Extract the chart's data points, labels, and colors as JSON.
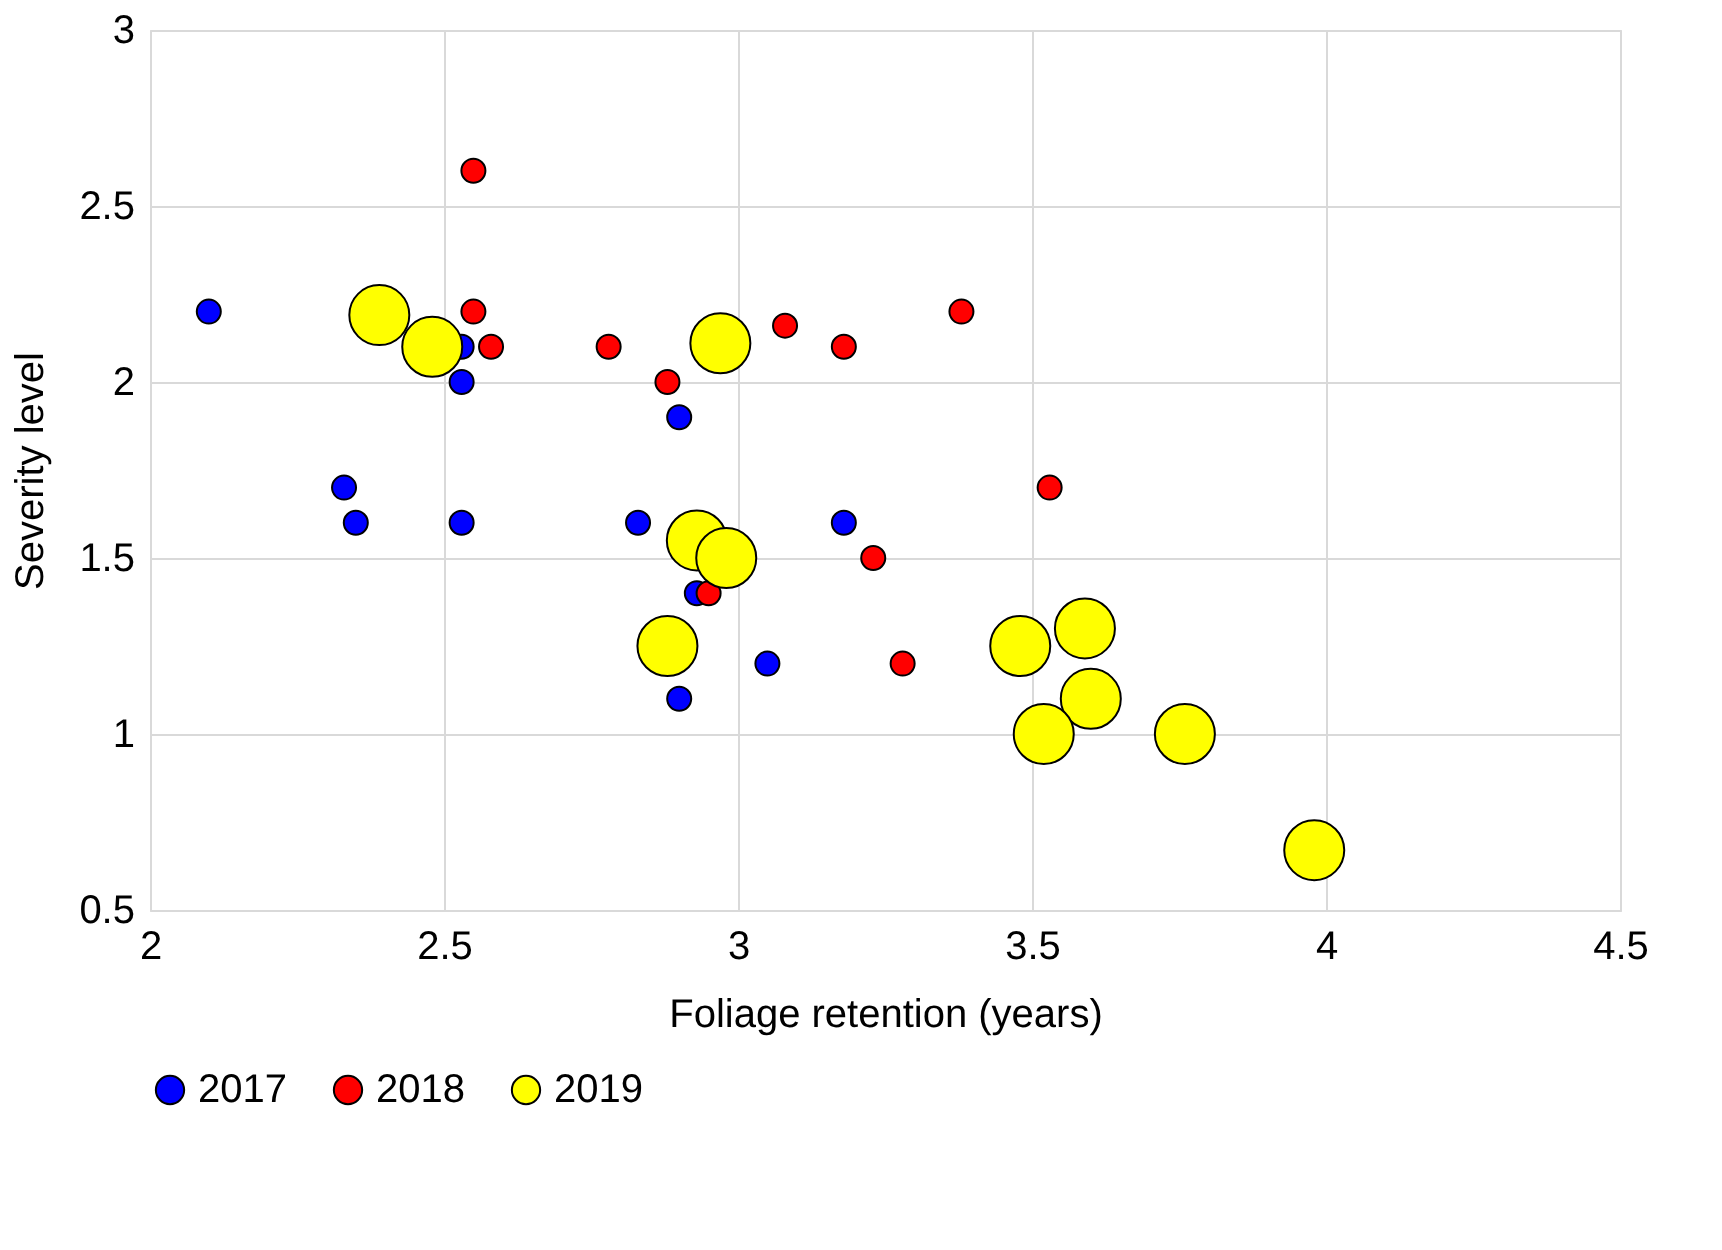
{
  "chart_data": {
    "type": "bubble",
    "xlabel": "Foliage retention (years)",
    "ylabel": "Severity level",
    "xlim": [
      2,
      4.5
    ],
    "xticks": [
      2,
      2.5,
      3,
      3.5,
      4,
      4.5
    ],
    "ylim": [
      0.5,
      3
    ],
    "yticks": [
      0.5,
      1,
      1.5,
      2,
      2.5,
      3
    ],
    "grid": true,
    "legend": "bottom",
    "marker": "circle",
    "series": [
      {
        "name": "2017",
        "color": "#0000ff",
        "x": [
          2.1,
          2.53,
          2.53,
          2.33,
          2.35,
          2.53,
          2.83,
          2.9,
          2.93,
          3.05,
          2.9,
          3.18
        ],
        "values": [
          2.2,
          2.1,
          2.0,
          1.7,
          1.6,
          1.6,
          1.6,
          1.9,
          1.4,
          1.2,
          1.1,
          1.6
        ],
        "sizes": [
          0.16,
          0.16,
          0.16,
          0.16,
          0.16,
          0.16,
          0.16,
          0.16,
          0.16,
          0.16,
          0.16,
          0.16
        ]
      },
      {
        "name": "2018",
        "color": "#ff0000",
        "x": [
          2.55,
          2.55,
          2.58,
          2.78,
          2.88,
          2.95,
          3.08,
          3.18,
          3.38,
          3.53,
          3.23,
          3.28
        ],
        "values": [
          2.6,
          2.2,
          2.1,
          2.1,
          2.0,
          1.4,
          2.16,
          2.1,
          2.2,
          1.7,
          1.5,
          1.2
        ],
        "sizes": [
          0.16,
          0.16,
          0.16,
          0.16,
          0.16,
          0.16,
          0.16,
          0.16,
          0.16,
          0.16,
          0.16,
          0.16
        ]
      },
      {
        "name": "2019",
        "color": "#ffff00",
        "x": [
          2.39,
          2.48,
          2.97,
          2.93,
          2.98,
          2.88,
          3.48,
          3.59,
          3.6,
          3.52,
          3.76,
          3.98
        ],
        "values": [
          2.19,
          2.1,
          2.11,
          1.55,
          1.5,
          1.25,
          1.25,
          1.3,
          1.1,
          1.0,
          1.0,
          0.67
        ],
        "sizes": [
          1,
          1,
          1,
          1,
          1,
          1,
          1,
          1,
          1,
          1,
          1,
          1
        ]
      }
    ]
  }
}
